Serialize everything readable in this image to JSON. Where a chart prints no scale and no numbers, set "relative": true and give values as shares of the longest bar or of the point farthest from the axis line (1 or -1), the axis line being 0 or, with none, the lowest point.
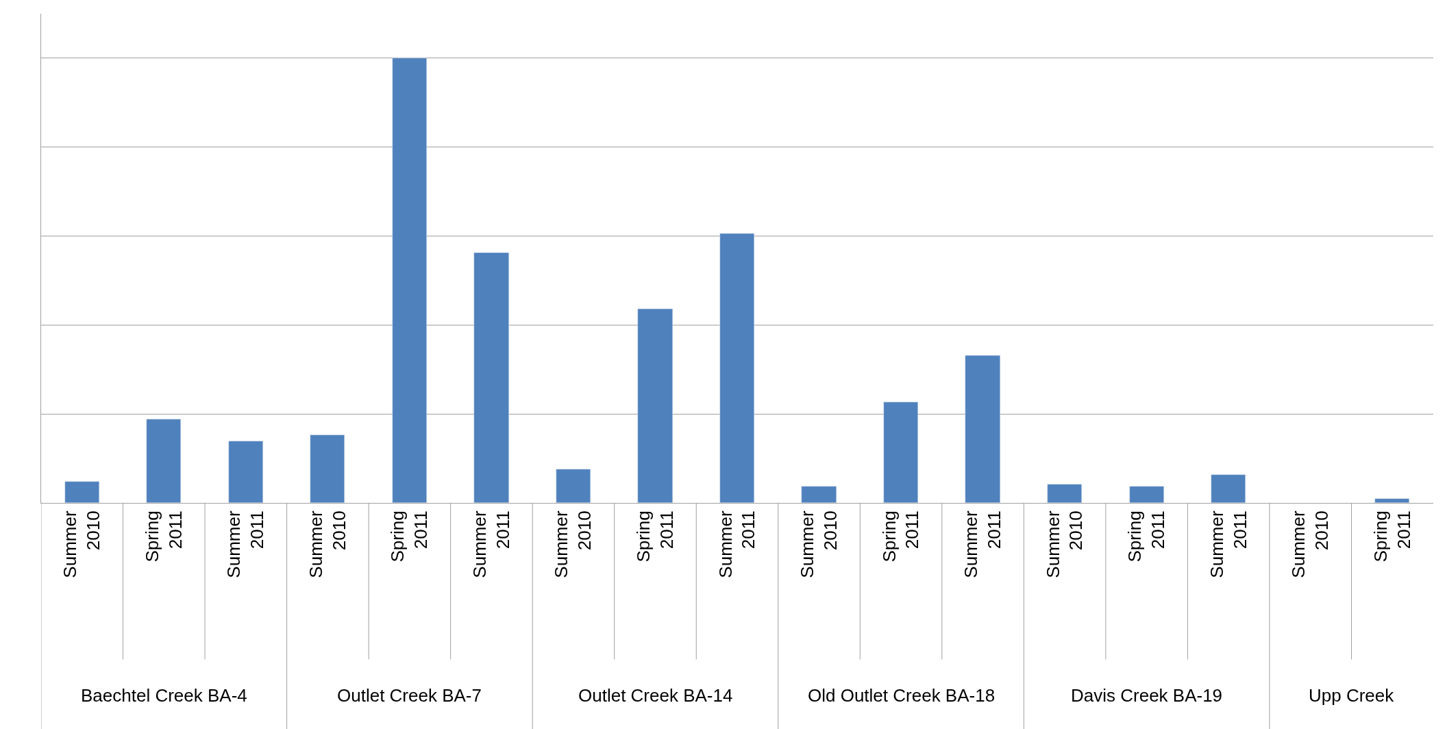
{
  "chart_data": {
    "type": "bar",
    "relative": true,
    "grid": "y",
    "color": "#4f81bd",
    "categories": [
      "Summer 2010",
      "Spring 2011",
      "Summer 2011",
      "Summer 2010",
      "Spring 2011",
      "Summer 2011",
      "Summer 2010",
      "Spring 2011",
      "Summer 2011",
      "Summer 2010",
      "Spring 2011",
      "Summer 2011",
      "Summer 2010",
      "Spring 2011",
      "Summer 2011",
      "Summer 2010",
      "Spring 2011"
    ],
    "values": [
      0.047,
      0.188,
      0.139,
      0.153,
      1,
      0.562,
      0.076,
      0.436,
      0.605,
      0.037,
      0.227,
      0.331,
      0.041,
      0.037,
      0.063,
      null,
      0.01
    ],
    "annotations": [
      "Baechtel Creek BA-4",
      "Outlet Creek BA-7",
      "Outlet Creek BA-14",
      "Old Outlet Creek BA-18",
      "Davis Creek BA-19",
      "Upp Creek"
    ]
  }
}
